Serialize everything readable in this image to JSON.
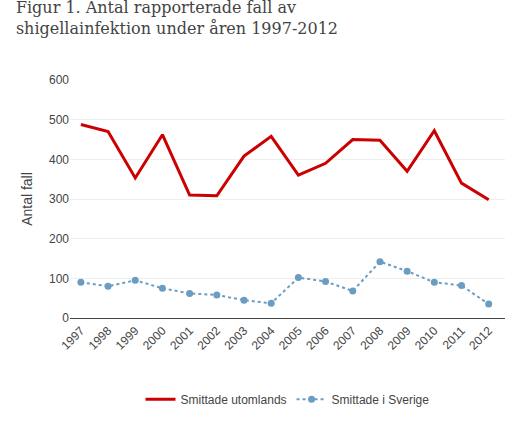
{
  "chart_data": {
    "type": "line",
    "title": "Figur 1. Antal rapporterade fall av\nshigellainfektion under åren 1997-2012",
    "ylabel": "Antal fall",
    "x": [
      1997,
      1998,
      1999,
      2000,
      2001,
      2002,
      2003,
      2004,
      2005,
      2006,
      2007,
      2008,
      2009,
      2010,
      2011,
      2012
    ],
    "series": [
      {
        "name": "Smittade utomlands",
        "color": "#cc0000",
        "line_style": "solid",
        "marker": "none",
        "values": [
          488,
          470,
          353,
          462,
          310,
          308,
          408,
          458,
          360,
          390,
          450,
          448,
          370,
          472,
          340,
          298
        ]
      },
      {
        "name": "Smittade i Sverige",
        "color": "#6b9dc2",
        "line_style": "dotted",
        "marker": "circle",
        "values": [
          90,
          80,
          95,
          75,
          62,
          58,
          45,
          37,
          102,
          92,
          68,
          142,
          118,
          90,
          82,
          35
        ]
      }
    ],
    "xlim": [
      1996.6,
      2012.6
    ],
    "xticks": [
      1997,
      1998,
      1999,
      2000,
      2001,
      2002,
      2003,
      2004,
      2005,
      2006,
      2007,
      2008,
      2009,
      2010,
      2011,
      2012
    ],
    "ylim": [
      0,
      600
    ],
    "yticks": [
      0,
      100,
      200,
      300,
      400,
      500,
      600
    ],
    "grid": "y",
    "legend": "bottom"
  }
}
